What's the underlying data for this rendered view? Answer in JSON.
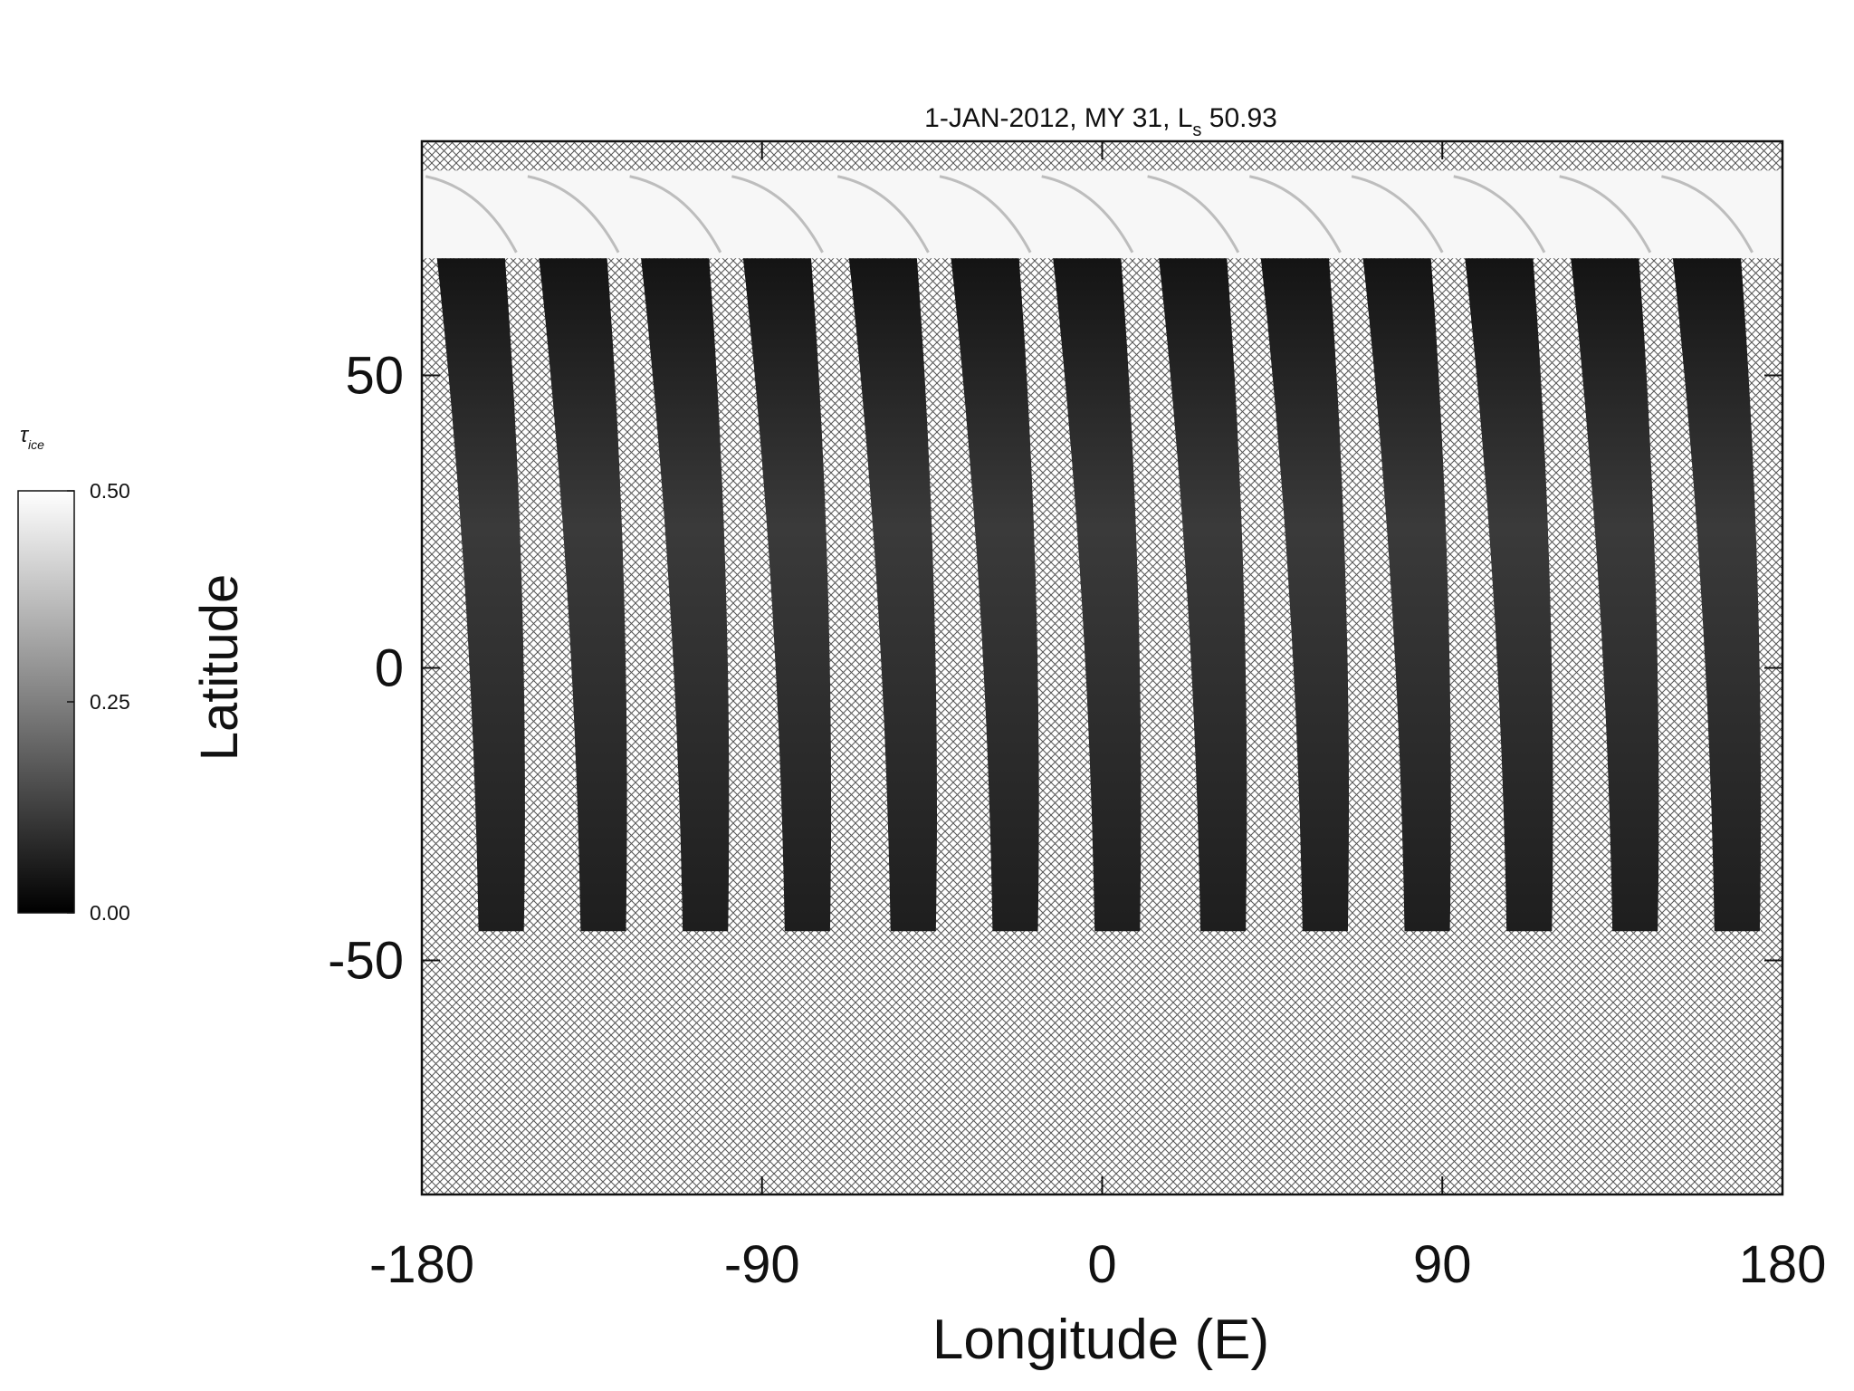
{
  "chart_data": {
    "type": "map",
    "title": {
      "text": "1-JAN-2012, MY 31,  L",
      "subscript": "s",
      "after": " 50.93"
    },
    "x_label": "Longitude (E)",
    "y_label": "Latitude",
    "xlim": [
      -180,
      180
    ],
    "xticks": [
      -180,
      -90,
      0,
      90,
      180
    ],
    "ylim": [
      -90,
      90
    ],
    "yticks": [
      50,
      0,
      -50
    ],
    "swath_longitudes": [
      -159,
      -132,
      -105,
      -78,
      -50,
      -23,
      4,
      32,
      59,
      86,
      113,
      141,
      168
    ],
    "swath_lat_range": [
      -45,
      70
    ],
    "cap_lat_range": [
      70,
      85
    ],
    "colorbar": {
      "label": "τ",
      "label_subscript": "ice",
      "lim": [
        0,
        0.5
      ],
      "ticks": [
        {
          "value": 0.5,
          "label": "0.50"
        },
        {
          "value": 0.25,
          "label": "0.25"
        },
        {
          "value": 0,
          "label": "0.00"
        }
      ],
      "colors": [
        "#000000",
        "#ffffff"
      ]
    }
  }
}
